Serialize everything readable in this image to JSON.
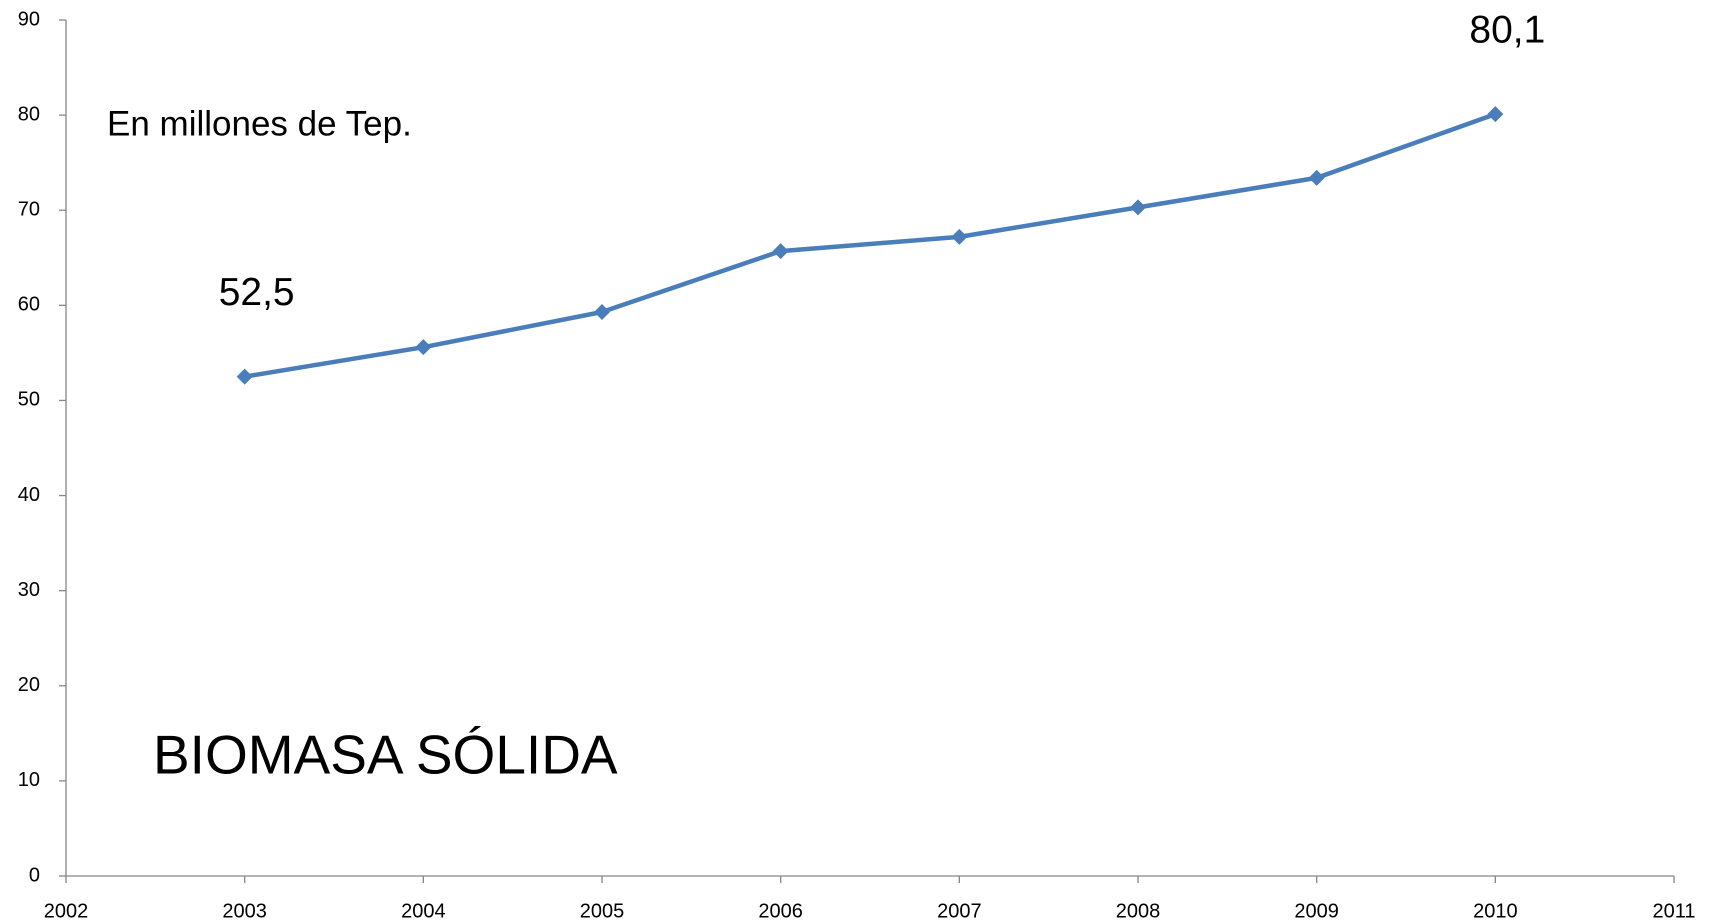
{
  "chart_data": {
    "type": "line",
    "annotations": [
      "En millones de Tep.",
      "BIOMASA SÓLIDA"
    ],
    "x": [
      2003,
      2004,
      2005,
      2006,
      2007,
      2008,
      2009,
      2010
    ],
    "values": [
      52.5,
      55.6,
      59.3,
      65.7,
      67.2,
      70.3,
      73.4,
      80.1
    ],
    "value_labels": [
      "52,5",
      null,
      null,
      null,
      null,
      null,
      null,
      "80,1"
    ],
    "color": "#4a7ebb",
    "xlim": [
      2002,
      2011
    ],
    "xticks": [
      2002,
      2003,
      2004,
      2005,
      2006,
      2007,
      2008,
      2009,
      2010,
      2011
    ],
    "ylim": [
      0,
      90
    ],
    "yticks": [
      0,
      10,
      20,
      30,
      40,
      50,
      60,
      70,
      80,
      90
    ],
    "grid": false
  }
}
